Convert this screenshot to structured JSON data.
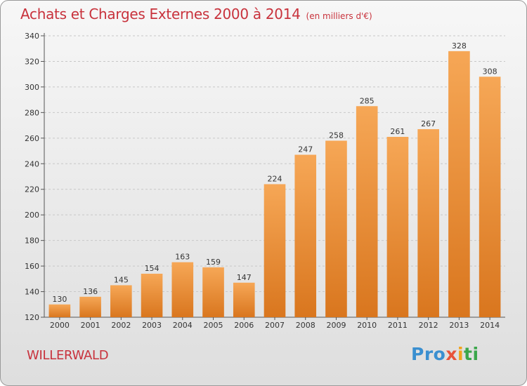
{
  "header": {
    "title": "Achats et Charges Externes 2000 à 2014",
    "unit": "(en milliers d'€)"
  },
  "footer": {
    "commune": "WILLERWALD",
    "logo_text": "Proxiti",
    "logo_parts": [
      "Pro",
      "x",
      "i",
      "ti"
    ]
  },
  "colors": {
    "title": "#c8323c",
    "bar_top": "#f6a756",
    "bar_bottom": "#d9761e",
    "grid": "#c8c8c8"
  },
  "chart_data": {
    "type": "bar",
    "title": "Achats et Charges Externes 2000 à 2014",
    "subtitle": "(en milliers d'€)",
    "categories": [
      "2000",
      "2001",
      "2002",
      "2003",
      "2004",
      "2005",
      "2006",
      "2007",
      "2008",
      "2009",
      "2010",
      "2011",
      "2012",
      "2013",
      "2014"
    ],
    "values": [
      130,
      136,
      145,
      154,
      163,
      159,
      147,
      224,
      247,
      258,
      285,
      261,
      267,
      328,
      308
    ],
    "ylim": [
      120,
      340
    ],
    "yticks": [
      120,
      140,
      160,
      180,
      200,
      220,
      240,
      260,
      280,
      300,
      320,
      340
    ],
    "grid": true,
    "data_labels": true
  }
}
